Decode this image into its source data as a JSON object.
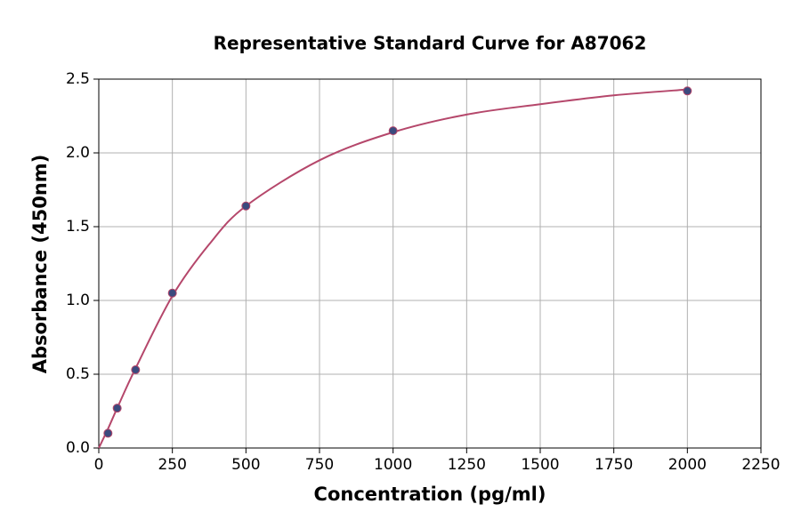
{
  "chart_data": {
    "type": "scatter",
    "title": "Representative Standard Curve for A87062",
    "x_label": "Concentration (pg/ml)",
    "y_label": "Absorbance (450nm)",
    "x": [
      31.25,
      62.5,
      125,
      250,
      500,
      1000,
      2000
    ],
    "series": [
      {
        "color": "#3b4a7e",
        "values": [
          0.1,
          0.27,
          0.53,
          1.05,
          1.64,
          2.15,
          2.42
        ]
      }
    ],
    "fit": {
      "color": "#b5476b",
      "x": [
        0,
        31.25,
        62.5,
        125,
        250,
        375,
        500,
        750,
        1000,
        1250,
        1500,
        1750,
        2000
      ],
      "values": [
        0.0,
        0.13,
        0.27,
        0.54,
        1.03,
        1.38,
        1.64,
        1.95,
        2.14,
        2.26,
        2.33,
        2.39,
        2.43
      ]
    },
    "xlim": [
      0,
      2250
    ],
    "ylim": [
      0,
      2.5
    ],
    "xticks": [
      0,
      250,
      500,
      750,
      1000,
      1250,
      1500,
      1750,
      2000,
      2250
    ],
    "yticks": [
      {
        "value": 0,
        "label": "0.0"
      },
      0.5,
      {
        "value": 1,
        "label": "1.0"
      },
      1.5,
      {
        "value": 2,
        "label": "2.0"
      },
      2.5
    ],
    "grid": true
  }
}
